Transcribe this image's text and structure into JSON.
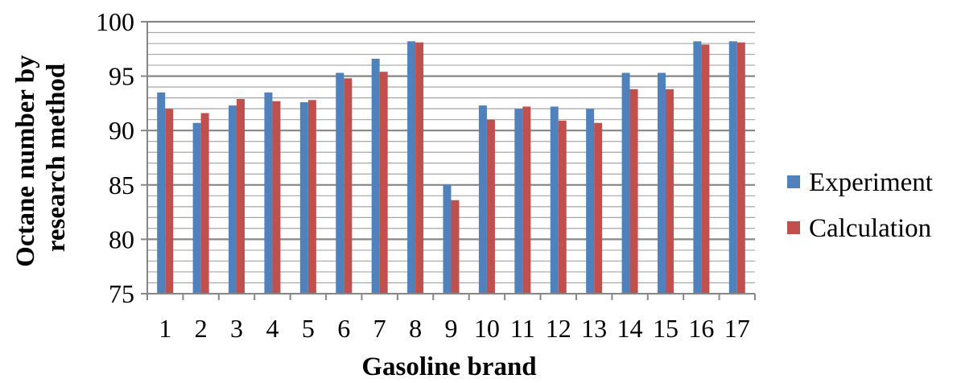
{
  "chart_data": {
    "type": "bar",
    "xlabel": "Gasoline brand",
    "ylabel_lines": [
      "Octane number by",
      "research method"
    ],
    "categories": [
      "1",
      "2",
      "3",
      "4",
      "5",
      "6",
      "7",
      "8",
      "9",
      "10",
      "11",
      "12",
      "13",
      "14",
      "15",
      "16",
      "17"
    ],
    "ylim": [
      75,
      100
    ],
    "yticks": [
      75,
      80,
      85,
      90,
      95,
      100
    ],
    "minor_grid_step": 1,
    "grid": true,
    "legend_position": "right",
    "series": [
      {
        "name": "Experiment",
        "color": "#4f81bd",
        "values": [
          93.5,
          90.7,
          92.3,
          93.5,
          92.6,
          95.3,
          96.6,
          98.2,
          85.0,
          92.3,
          92.0,
          92.2,
          92.0,
          95.3,
          95.3,
          98.2,
          98.2
        ]
      },
      {
        "name": "Calculation",
        "color": "#c0504d",
        "values": [
          92.0,
          91.6,
          92.9,
          92.7,
          92.8,
          94.8,
          95.4,
          98.1,
          83.6,
          91.0,
          92.2,
          90.9,
          90.7,
          93.8,
          93.8,
          97.9,
          98.1
        ]
      }
    ]
  }
}
